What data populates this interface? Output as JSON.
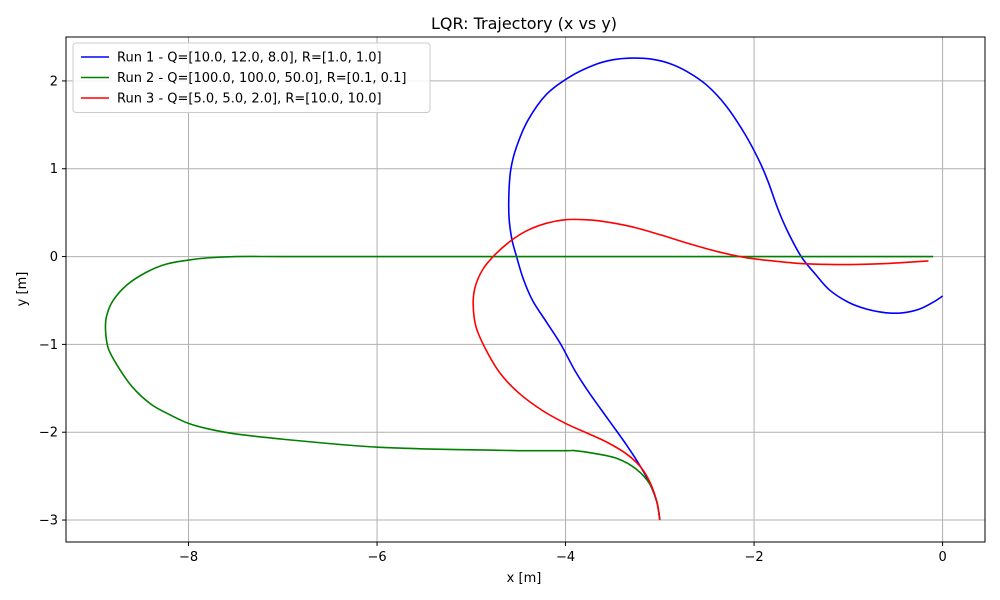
{
  "chart_data": {
    "type": "line",
    "title": "LQR: Trajectory (x vs y)",
    "xlabel": "x [m]",
    "ylabel": "y [m]",
    "xlim": [
      -9.3,
      0.45
    ],
    "ylim": [
      -3.25,
      2.5
    ],
    "xticks": [
      -8,
      -6,
      -4,
      -2,
      0
    ],
    "yticks": [
      -3,
      -2,
      -1,
      0,
      1,
      2
    ],
    "xtick_labels": [
      "−8",
      "−6",
      "−4",
      "−2",
      "0"
    ],
    "ytick_labels": [
      "−3",
      "−2",
      "−1",
      "0",
      "1",
      "2"
    ],
    "grid": true,
    "legend_position": "top-left",
    "series": [
      {
        "name": "Run 1 - Q=[10.0, 12.0, 8.0], R=[1.0, 1.0]",
        "color": "#0000ff",
        "x": [
          -3.0,
          -3.03,
          -3.1,
          -3.2,
          -3.35,
          -3.55,
          -3.75,
          -3.9,
          -4.05,
          -4.2,
          -4.35,
          -4.45,
          -4.52,
          -4.57,
          -4.6,
          -4.6,
          -4.58,
          -4.52,
          -4.4,
          -4.2,
          -3.95,
          -3.7,
          -3.5,
          -3.3,
          -3.1,
          -2.9,
          -2.7,
          -2.5,
          -2.3,
          -2.1,
          -1.95,
          -1.85,
          -1.75,
          -1.65,
          -1.5,
          -1.35,
          -1.2,
          -1.0,
          -0.8,
          -0.6,
          -0.42,
          -0.25,
          -0.1,
          0.0
        ],
        "y": [
          -3.0,
          -2.8,
          -2.6,
          -2.4,
          -2.15,
          -1.85,
          -1.55,
          -1.3,
          -1.0,
          -0.75,
          -0.5,
          -0.25,
          0.0,
          0.2,
          0.45,
          0.75,
          1.0,
          1.25,
          1.55,
          1.85,
          2.05,
          2.18,
          2.24,
          2.26,
          2.25,
          2.2,
          2.1,
          1.95,
          1.72,
          1.4,
          1.1,
          0.85,
          0.55,
          0.3,
          0.0,
          -0.2,
          -0.38,
          -0.52,
          -0.6,
          -0.64,
          -0.64,
          -0.6,
          -0.52,
          -0.45
        ]
      },
      {
        "name": "Run 2 - Q=[100.0, 100.0, 50.0], R=[0.1, 0.1]",
        "color": "#008000",
        "x": [
          -3.0,
          -3.03,
          -3.1,
          -3.25,
          -3.45,
          -3.7,
          -3.9,
          -4.0,
          -4.5,
          -5.0,
          -5.5,
          -6.0,
          -6.5,
          -7.0,
          -7.5,
          -7.8,
          -8.0,
          -8.2,
          -8.4,
          -8.6,
          -8.75,
          -8.85,
          -8.88,
          -8.87,
          -8.8,
          -8.65,
          -8.45,
          -8.25,
          -8.0,
          -7.8,
          -7.5,
          -7.0,
          -6.0,
          -5.0,
          -4.0,
          -3.0,
          -2.0,
          -1.0,
          -0.1
        ],
        "y": [
          -3.0,
          -2.8,
          -2.6,
          -2.42,
          -2.3,
          -2.24,
          -2.21,
          -2.21,
          -2.21,
          -2.2,
          -2.19,
          -2.17,
          -2.13,
          -2.08,
          -2.02,
          -1.96,
          -1.9,
          -1.8,
          -1.68,
          -1.48,
          -1.25,
          -1.05,
          -0.85,
          -0.68,
          -0.5,
          -0.32,
          -0.18,
          -0.09,
          -0.04,
          -0.015,
          0.0,
          0.0,
          0.0,
          0.0,
          0.0,
          0.0,
          0.0,
          0.0,
          0.0
        ]
      },
      {
        "name": "Run 3 - Q=[5.0, 5.0, 2.0], R=[10.0, 10.0]",
        "color": "#ff0000",
        "x": [
          -3.0,
          -3.03,
          -3.1,
          -3.2,
          -3.35,
          -3.55,
          -3.75,
          -4.0,
          -4.25,
          -4.5,
          -4.7,
          -4.85,
          -4.95,
          -4.98,
          -4.96,
          -4.88,
          -4.75,
          -4.58,
          -4.4,
          -4.2,
          -4.0,
          -3.8,
          -3.6,
          -3.3,
          -3.0,
          -2.7,
          -2.4,
          -2.1,
          -1.8,
          -1.5,
          -1.2,
          -0.9,
          -0.6,
          -0.3,
          -0.15
        ],
        "y": [
          -3.0,
          -2.8,
          -2.58,
          -2.4,
          -2.25,
          -2.12,
          -2.02,
          -1.9,
          -1.75,
          -1.55,
          -1.32,
          -1.05,
          -0.8,
          -0.55,
          -0.35,
          -0.15,
          0.02,
          0.18,
          0.3,
          0.38,
          0.42,
          0.42,
          0.4,
          0.34,
          0.25,
          0.15,
          0.06,
          -0.01,
          -0.05,
          -0.08,
          -0.09,
          -0.09,
          -0.08,
          -0.06,
          -0.05
        ]
      }
    ]
  }
}
